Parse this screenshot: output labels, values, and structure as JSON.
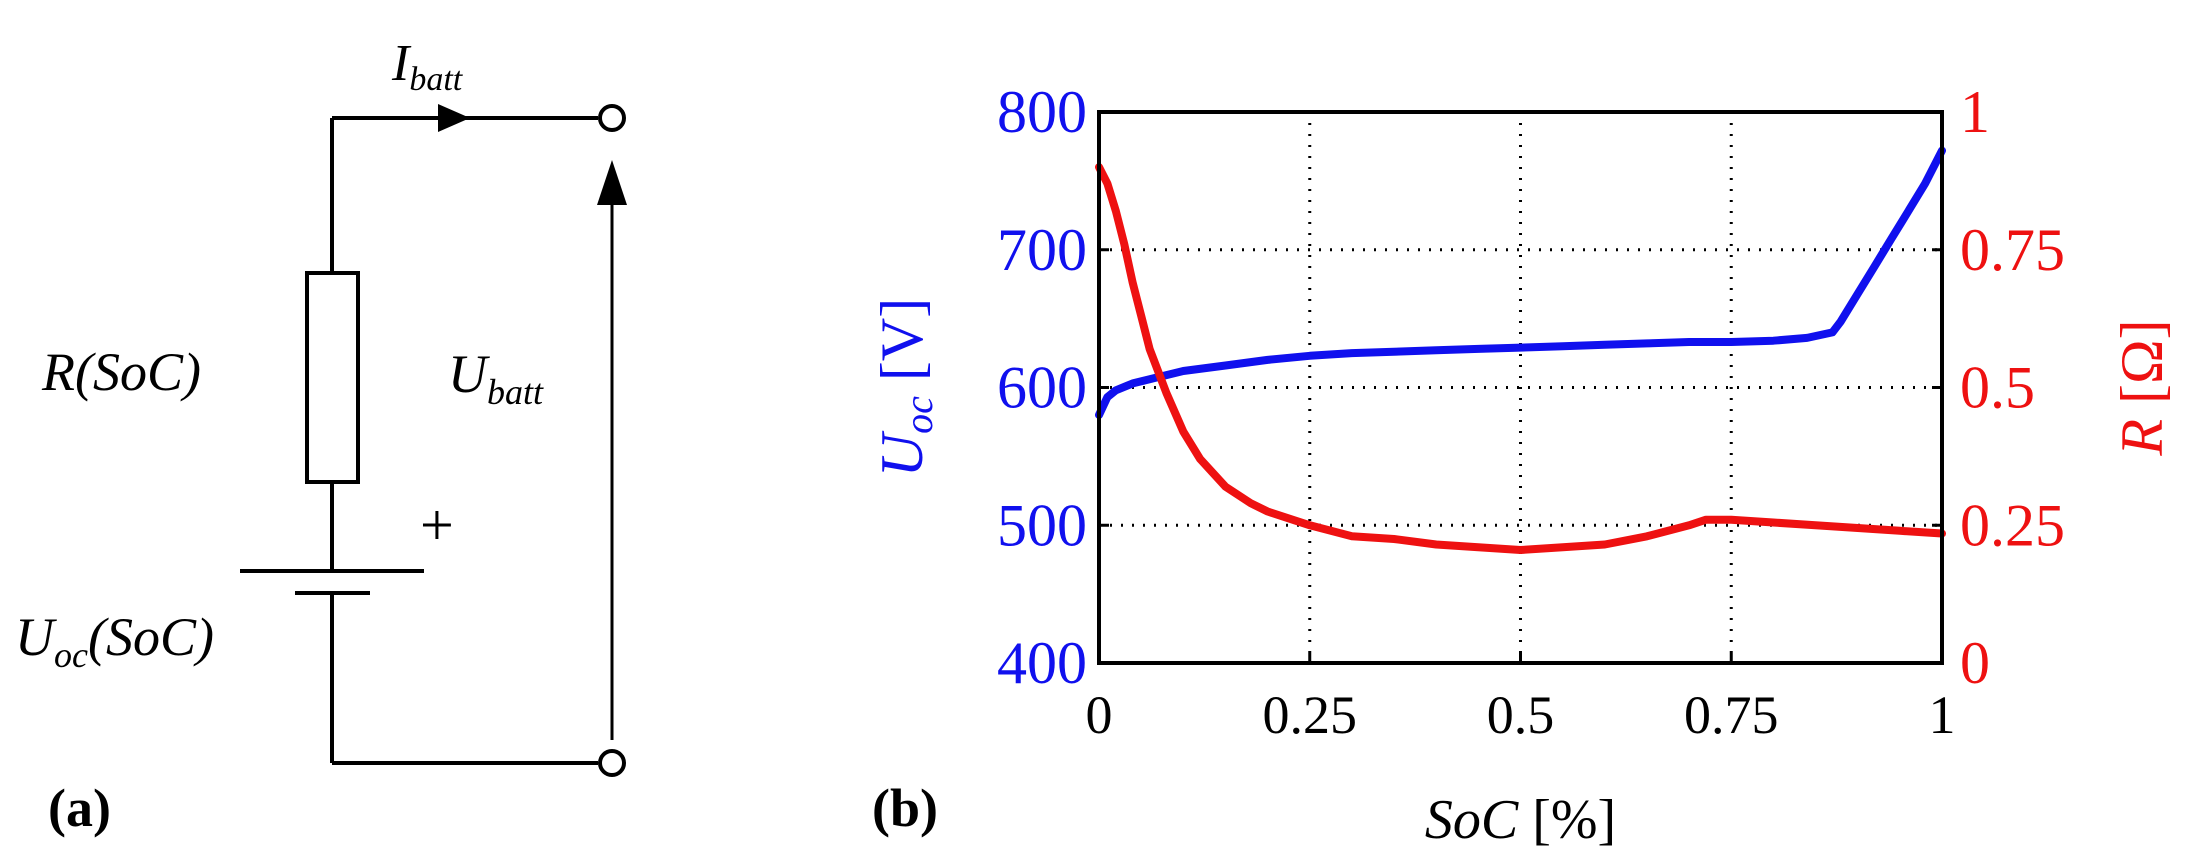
{
  "panel_a": {
    "label": "(a)",
    "current": {
      "symbol": "I",
      "sub": "batt"
    },
    "voltage": {
      "symbol": "U",
      "sub": "batt"
    },
    "resistor": {
      "text": "R(SoC)"
    },
    "source": {
      "symbol": "U",
      "sub": "oc",
      "arg": "(SoC)",
      "plus": "+"
    }
  },
  "panel_b": {
    "label": "(b)"
  },
  "colors": {
    "left_axis": "#1010ee",
    "right_axis": "#ee1111",
    "black": "#000000"
  },
  "chart_data": {
    "type": "line",
    "xlabel": {
      "italic": "SoC",
      "unit": " [%]"
    },
    "ylabel_left": {
      "symbol": "U",
      "sub": "oc",
      "unit": " [V]"
    },
    "ylabel_right": {
      "symbol": "R",
      "unit": " [Ω]"
    },
    "xlim": [
      0,
      1
    ],
    "ylim_left": [
      400,
      800
    ],
    "ylim_right": [
      0,
      1
    ],
    "xticks": [
      0,
      0.25,
      0.5,
      0.75,
      1
    ],
    "xtick_labels": [
      "0",
      "0.25",
      "0.5",
      "0.75",
      "1"
    ],
    "yticks_left": [
      400,
      500,
      600,
      700,
      800
    ],
    "ytick_labels_left": [
      "400",
      "500",
      "600",
      "700",
      "800"
    ],
    "yticks_right": [
      0,
      0.25,
      0.5,
      0.75,
      1
    ],
    "ytick_labels_right": [
      "0",
      "0.25",
      "0.5",
      "0.75",
      "1"
    ],
    "grid": true,
    "series": [
      {
        "name": "Uoc",
        "axis": "left",
        "x": [
          0,
          0.01,
          0.02,
          0.04,
          0.06,
          0.08,
          0.1,
          0.15,
          0.2,
          0.25,
          0.3,
          0.35,
          0.4,
          0.45,
          0.5,
          0.55,
          0.6,
          0.65,
          0.7,
          0.75,
          0.8,
          0.84,
          0.87,
          0.88,
          0.9,
          0.92,
          0.94,
          0.96,
          0.98,
          1.0
        ],
        "y": [
          580,
          593,
          598,
          603,
          606,
          609,
          612,
          616,
          620,
          623,
          625,
          626,
          627,
          628,
          629,
          630,
          631,
          632,
          633,
          633,
          634,
          636,
          640,
          648,
          668,
          688,
          708,
          728,
          748,
          772
        ]
      },
      {
        "name": "R",
        "axis": "right",
        "x": [
          0,
          0.01,
          0.02,
          0.03,
          0.04,
          0.05,
          0.06,
          0.08,
          0.1,
          0.12,
          0.15,
          0.18,
          0.2,
          0.25,
          0.3,
          0.35,
          0.4,
          0.45,
          0.5,
          0.55,
          0.6,
          0.65,
          0.7,
          0.72,
          0.75,
          0.8,
          0.85,
          0.9,
          0.95,
          1.0
        ],
        "y": [
          0.9,
          0.87,
          0.82,
          0.76,
          0.69,
          0.63,
          0.57,
          0.49,
          0.42,
          0.37,
          0.32,
          0.29,
          0.275,
          0.25,
          0.23,
          0.225,
          0.215,
          0.21,
          0.205,
          0.21,
          0.215,
          0.23,
          0.25,
          0.26,
          0.26,
          0.255,
          0.25,
          0.245,
          0.24,
          0.235
        ]
      }
    ]
  }
}
